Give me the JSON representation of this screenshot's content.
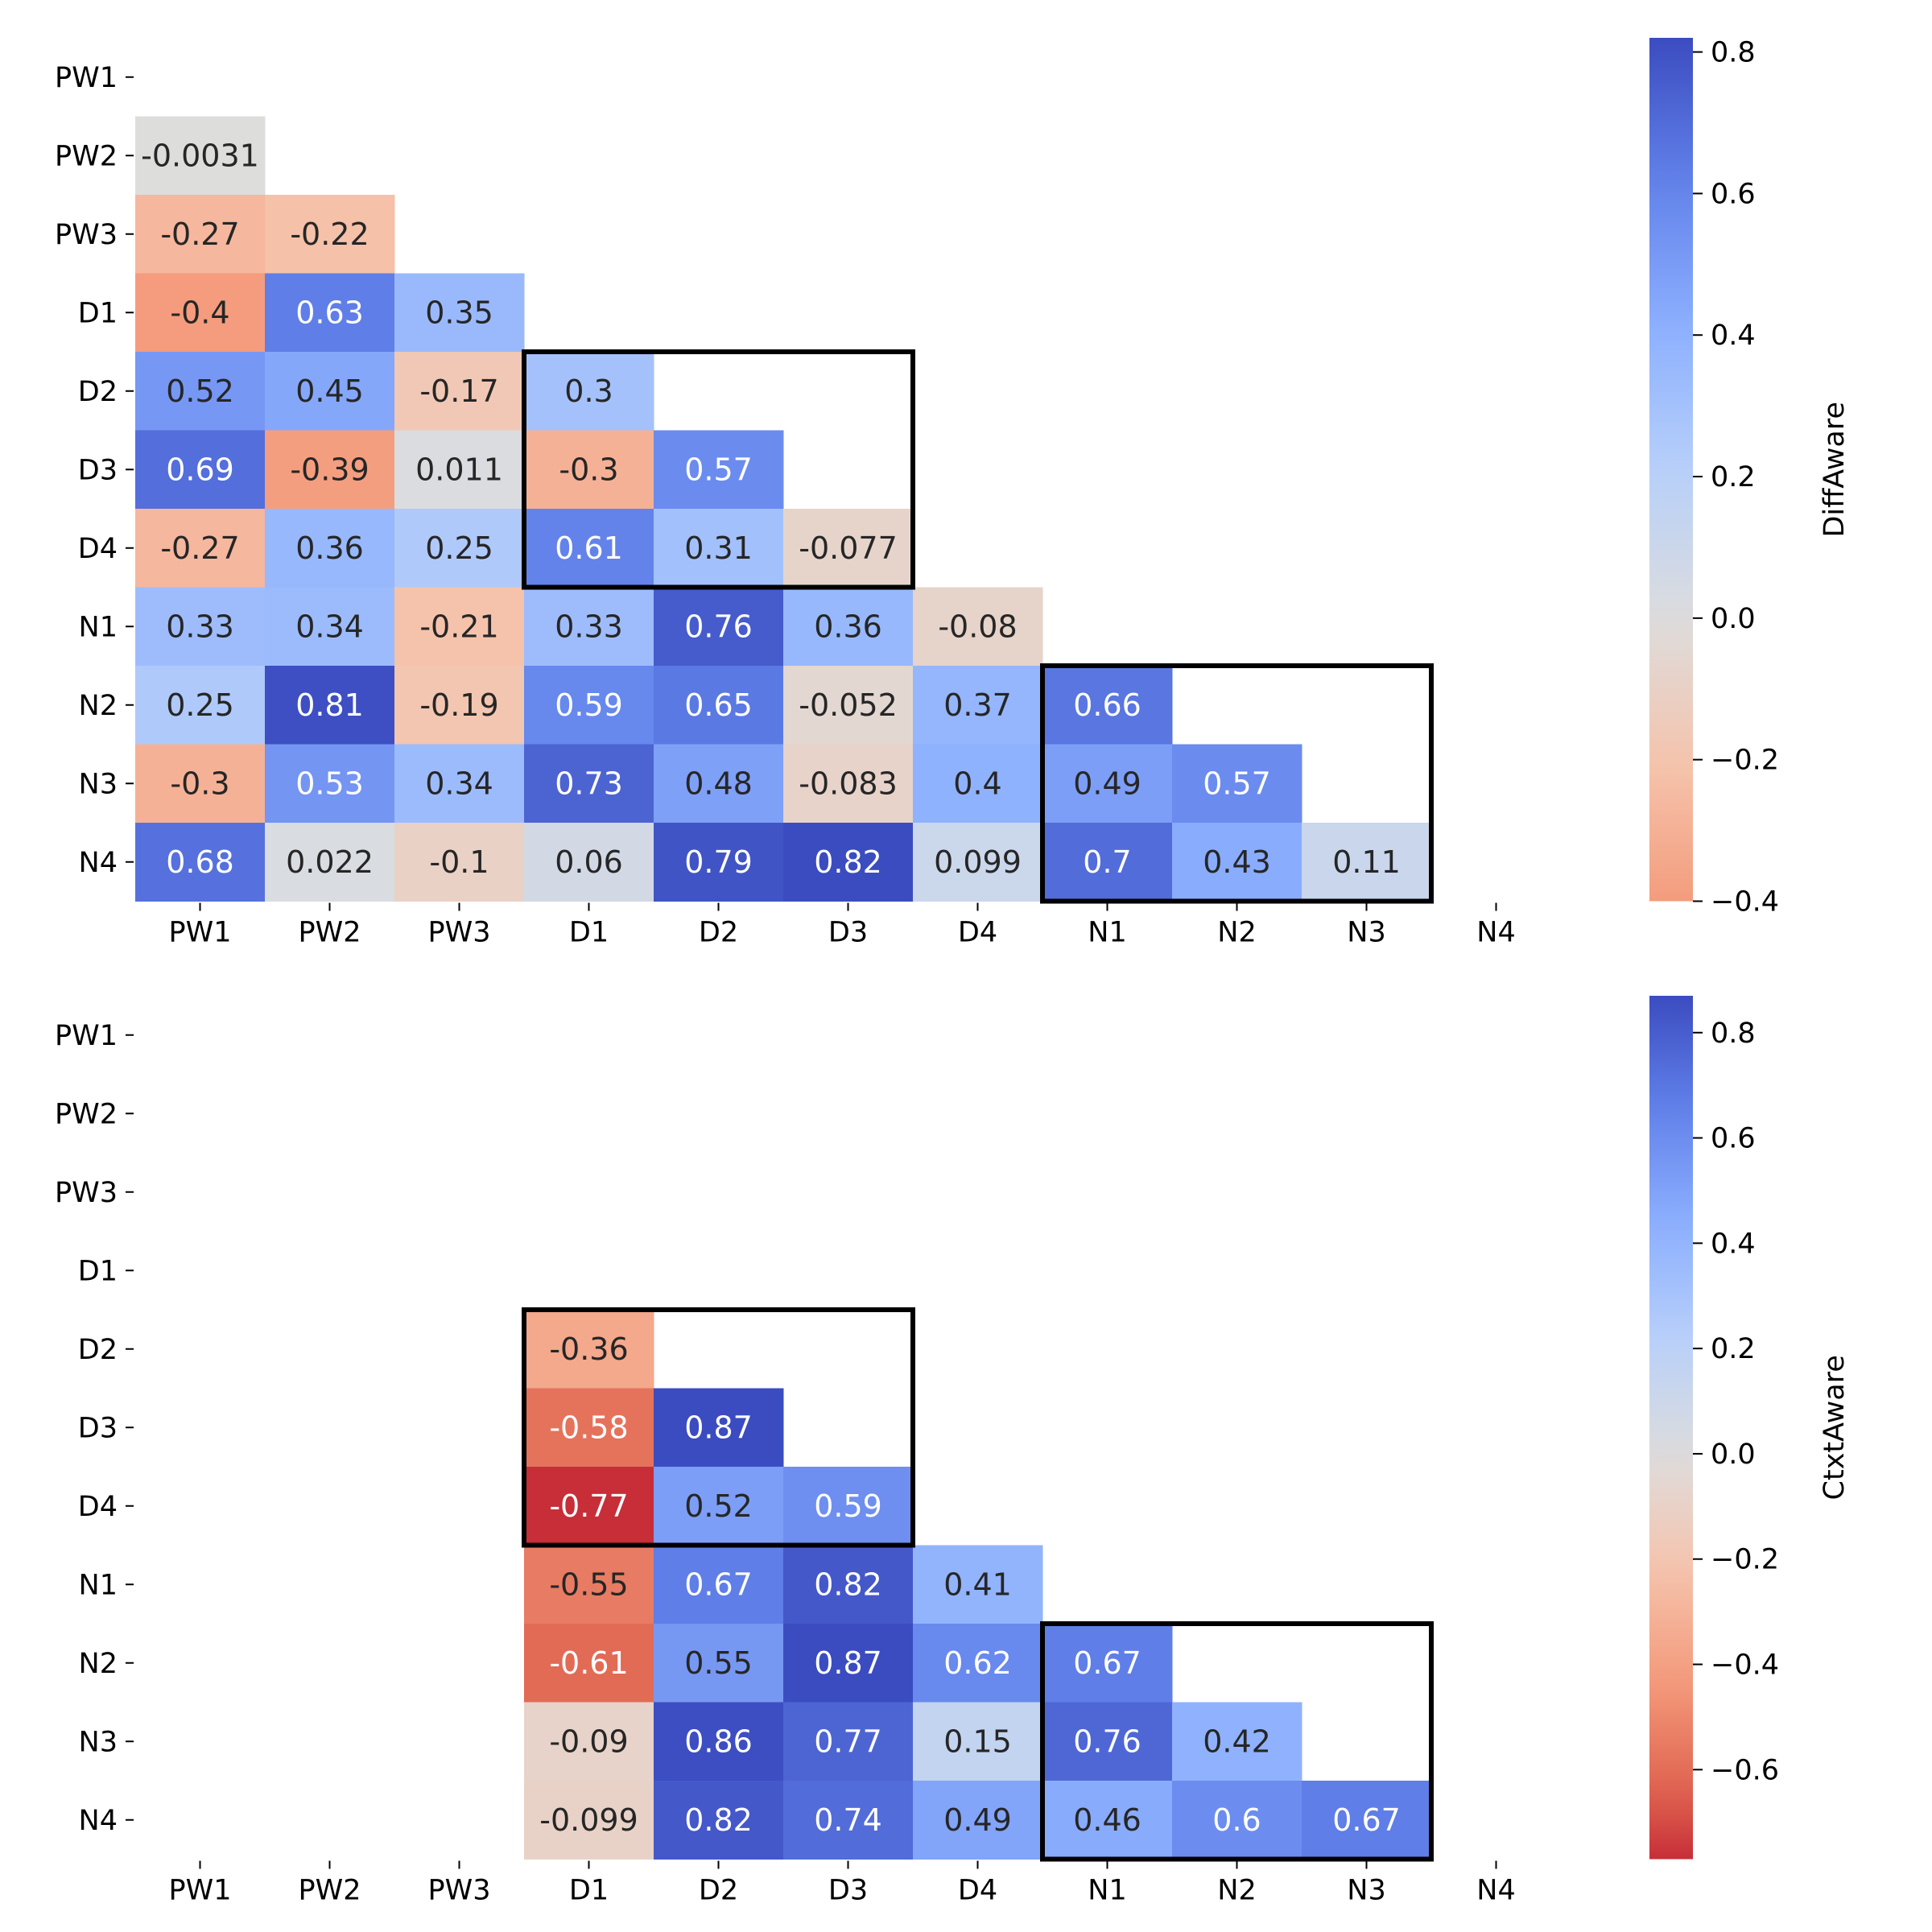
{
  "chart_data": [
    {
      "type": "heatmap",
      "title": "",
      "colorbar_label": "DiffAware",
      "row_labels": [
        "PW1",
        "PW2",
        "PW3",
        "D1",
        "D2",
        "D3",
        "D4",
        "N1",
        "N2",
        "N3",
        "N4"
      ],
      "col_labels": [
        "PW1",
        "PW2",
        "PW3",
        "D1",
        "D2",
        "D3",
        "D4",
        "N1",
        "N2",
        "N3",
        "N4"
      ],
      "rows": [
        [
          null,
          null,
          null,
          null,
          null,
          null,
          null,
          null,
          null,
          null,
          null
        ],
        [
          "-0.0031",
          null,
          null,
          null,
          null,
          null,
          null,
          null,
          null,
          null,
          null
        ],
        [
          "-0.27",
          "-0.22",
          null,
          null,
          null,
          null,
          null,
          null,
          null,
          null,
          null
        ],
        [
          "-0.4",
          "0.63",
          "0.35",
          null,
          null,
          null,
          null,
          null,
          null,
          null,
          null
        ],
        [
          "0.52",
          "0.45",
          "-0.17",
          "0.3",
          null,
          null,
          null,
          null,
          null,
          null,
          null
        ],
        [
          "0.69",
          "-0.39",
          "0.011",
          "-0.3",
          "0.57",
          null,
          null,
          null,
          null,
          null,
          null
        ],
        [
          "-0.27",
          "0.36",
          "0.25",
          "0.61",
          "0.31",
          "-0.077",
          null,
          null,
          null,
          null,
          null
        ],
        [
          "0.33",
          "0.34",
          "-0.21",
          "0.33",
          "0.76",
          "0.36",
          "-0.08",
          null,
          null,
          null,
          null
        ],
        [
          "0.25",
          "0.81",
          "-0.19",
          "0.59",
          "0.65",
          "-0.052",
          "0.37",
          "0.66",
          null,
          null,
          null
        ],
        [
          "-0.3",
          "0.53",
          "0.34",
          "0.73",
          "0.48",
          "-0.083",
          "0.4",
          "0.49",
          "0.57",
          null,
          null
        ],
        [
          "0.68",
          "0.022",
          "-0.1",
          "0.06",
          "0.79",
          "0.82",
          "0.099",
          "0.7",
          "0.43",
          "0.11",
          null
        ]
      ],
      "vmin": -0.4,
      "vmax": 0.82,
      "colorbar_ticks": [
        "0.8",
        "0.6",
        "0.4",
        "0.2",
        "0.0",
        "−0.2",
        "−0.4"
      ],
      "colormap": "coolwarm_r",
      "highlight_boxes": [
        {
          "rows": [
            "D2",
            "D4"
          ],
          "cols": [
            "D1",
            "D3"
          ]
        },
        {
          "rows": [
            "N2",
            "N4"
          ],
          "cols": [
            "N1",
            "N3"
          ]
        }
      ]
    },
    {
      "type": "heatmap",
      "title": "",
      "colorbar_label": "CtxtAware",
      "row_labels": [
        "PW1",
        "PW2",
        "PW3",
        "D1",
        "D2",
        "D3",
        "D4",
        "N1",
        "N2",
        "N3",
        "N4"
      ],
      "col_labels": [
        "PW1",
        "PW2",
        "PW3",
        "D1",
        "D2",
        "D3",
        "D4",
        "N1",
        "N2",
        "N3",
        "N4"
      ],
      "rows": [
        [
          null,
          null,
          null,
          null,
          null,
          null,
          null,
          null,
          null,
          null,
          null
        ],
        [
          null,
          null,
          null,
          null,
          null,
          null,
          null,
          null,
          null,
          null,
          null
        ],
        [
          null,
          null,
          null,
          null,
          null,
          null,
          null,
          null,
          null,
          null,
          null
        ],
        [
          null,
          null,
          null,
          null,
          null,
          null,
          null,
          null,
          null,
          null,
          null
        ],
        [
          null,
          null,
          null,
          "-0.36",
          null,
          null,
          null,
          null,
          null,
          null,
          null
        ],
        [
          null,
          null,
          null,
          "-0.58",
          "0.87",
          null,
          null,
          null,
          null,
          null,
          null
        ],
        [
          null,
          null,
          null,
          "-0.77",
          "0.52",
          "0.59",
          null,
          null,
          null,
          null,
          null
        ],
        [
          null,
          null,
          null,
          "-0.55",
          "0.67",
          "0.82",
          "0.41",
          null,
          null,
          null,
          null
        ],
        [
          null,
          null,
          null,
          "-0.61",
          "0.55",
          "0.87",
          "0.62",
          "0.67",
          null,
          null,
          null
        ],
        [
          null,
          null,
          null,
          "-0.09",
          "0.86",
          "0.77",
          "0.15",
          "0.76",
          "0.42",
          null,
          null
        ],
        [
          null,
          null,
          null,
          "-0.099",
          "0.82",
          "0.74",
          "0.49",
          "0.46",
          "0.6",
          "0.67",
          null
        ]
      ],
      "vmin": -0.77,
      "vmax": 0.87,
      "colorbar_ticks": [
        "0.8",
        "0.6",
        "0.4",
        "0.2",
        "0.0",
        "−0.2",
        "−0.4",
        "−0.6"
      ],
      "colormap": "coolwarm_r",
      "highlight_boxes": [
        {
          "rows": [
            "D2",
            "D4"
          ],
          "cols": [
            "D1",
            "D3"
          ]
        },
        {
          "rows": [
            "N2",
            "N4"
          ],
          "cols": [
            "N1",
            "N3"
          ]
        }
      ]
    }
  ]
}
